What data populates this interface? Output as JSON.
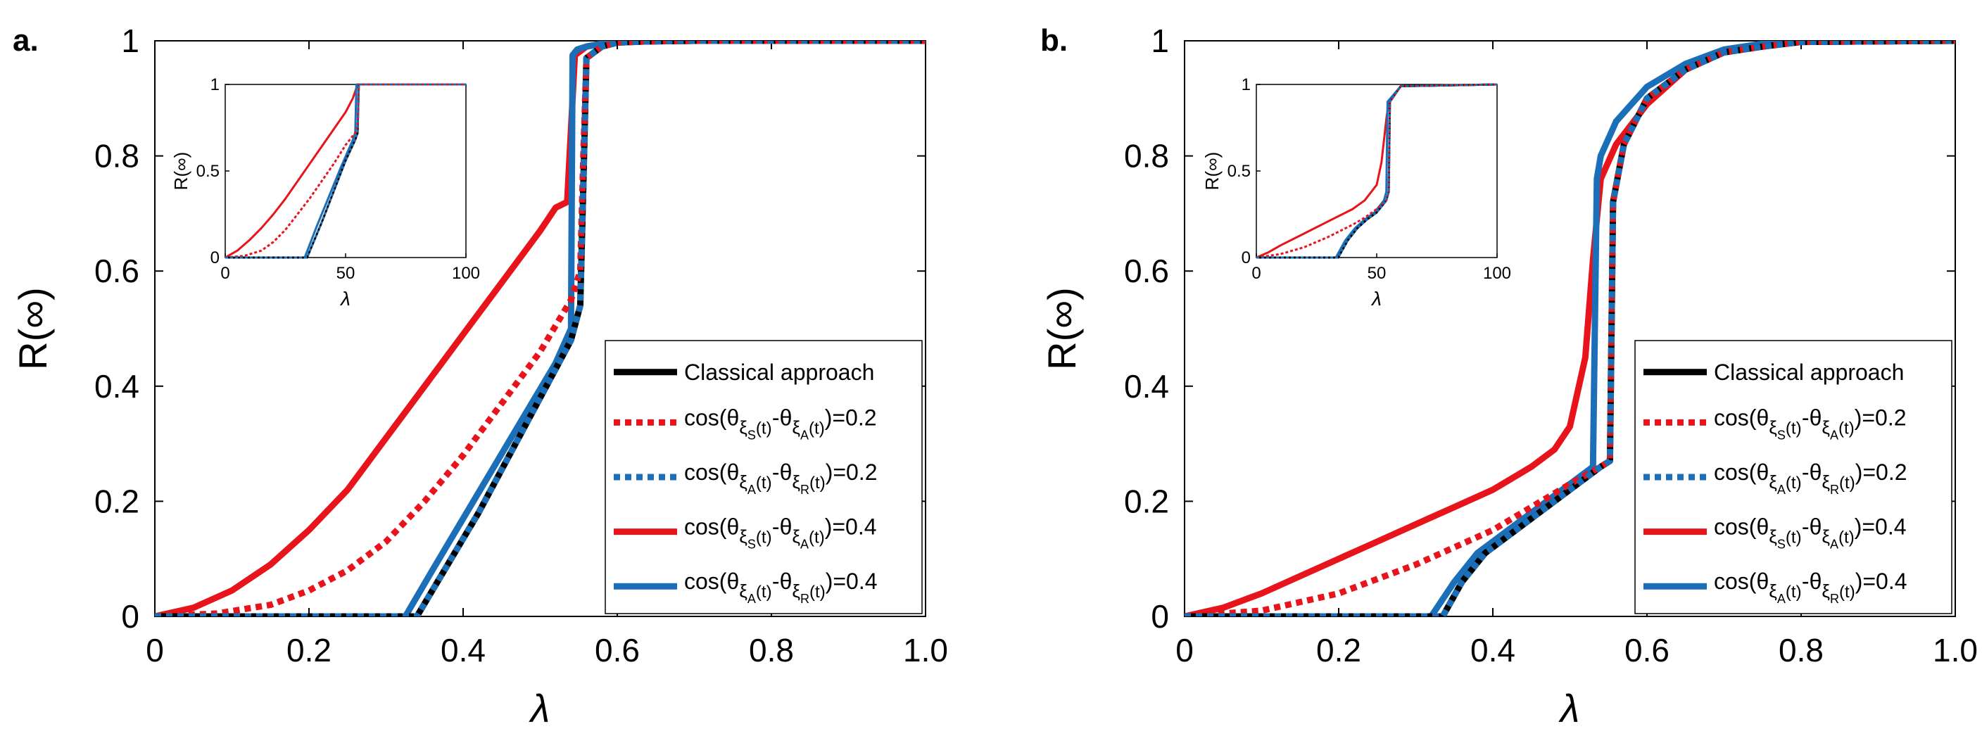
{
  "chart_data": [
    {
      "panel_label": "a.",
      "type": "line",
      "xlabel": "λ",
      "ylabel": "R(∞)",
      "xlim": [
        0,
        1.0
      ],
      "ylim": [
        0,
        1
      ],
      "xticks": [
        "0",
        "0.2",
        "0.4",
        "0.6",
        "0.8",
        "1.0"
      ],
      "yticks": [
        "0",
        "0.2",
        "0.4",
        "0.6",
        "0.8",
        "1"
      ],
      "legend_placement": "lower-right",
      "legend": [
        {
          "prefix": "Classical approach",
          "s1": "",
          "s2": "",
          "value": ""
        },
        {
          "prefix": "cos(θ",
          "s1": "S",
          "s2": "A",
          "value": "=0.2"
        },
        {
          "prefix": "cos(θ",
          "s1": "A",
          "s2": "R",
          "value": "=0.2"
        },
        {
          "prefix": "cos(θ",
          "s1": "S",
          "s2": "A",
          "value": "=0.4"
        },
        {
          "prefix": "cos(θ",
          "s1": "A",
          "s2": "R",
          "value": "=0.4"
        }
      ],
      "series": [
        {
          "name": "Classical approach",
          "color": "#000000",
          "style": "solid",
          "x": [
            0,
            0.34,
            0.38,
            0.42,
            0.46,
            0.5,
            0.54,
            0.552,
            0.556,
            0.56,
            0.58,
            0.6,
            0.64,
            0.7,
            1.0
          ],
          "y": [
            0,
            0,
            0.09,
            0.18,
            0.28,
            0.38,
            0.48,
            0.54,
            0.75,
            0.97,
            0.99,
            0.997,
            0.999,
            1,
            1
          ]
        },
        {
          "name": "cos(θξS(t)-θξA(t))=0.2",
          "color": "#e8141b",
          "style": "dashed",
          "x": [
            0,
            0.08,
            0.15,
            0.2,
            0.25,
            0.3,
            0.35,
            0.4,
            0.45,
            0.5,
            0.54,
            0.552,
            0.556,
            0.56,
            0.58,
            0.6,
            0.64,
            0.7,
            1.0
          ],
          "y": [
            0,
            0.005,
            0.02,
            0.045,
            0.08,
            0.13,
            0.2,
            0.28,
            0.37,
            0.46,
            0.55,
            0.6,
            0.8,
            0.97,
            0.99,
            0.997,
            0.999,
            1,
            1
          ]
        },
        {
          "name": "cos(θξA(t)-θξR(t))=0.2",
          "color": "#1b6fb8",
          "style": "dashed",
          "x": [
            0,
            0.34,
            0.38,
            0.42,
            0.46,
            0.5,
            0.54,
            0.552,
            0.556,
            0.56,
            0.58,
            0.6,
            0.64,
            0.7,
            1.0
          ],
          "y": [
            0,
            0,
            0.09,
            0.18,
            0.28,
            0.38,
            0.48,
            0.54,
            0.75,
            0.97,
            0.99,
            0.997,
            0.999,
            1,
            1
          ]
        },
        {
          "name": "cos(θξS(t)-θξA(t))=0.4",
          "color": "#e8141b",
          "style": "solid",
          "x": [
            0,
            0.05,
            0.1,
            0.15,
            0.2,
            0.25,
            0.3,
            0.35,
            0.4,
            0.45,
            0.5,
            0.52,
            0.535,
            0.545,
            0.56,
            0.58,
            0.6,
            0.64,
            0.7,
            1.0
          ],
          "y": [
            0,
            0.015,
            0.045,
            0.09,
            0.15,
            0.22,
            0.31,
            0.4,
            0.49,
            0.58,
            0.67,
            0.71,
            0.72,
            0.975,
            0.99,
            0.995,
            0.998,
            0.999,
            1,
            1
          ]
        },
        {
          "name": "cos(θξA(t)-θξR(t))=0.4",
          "color": "#1b6fb8",
          "style": "solid",
          "x": [
            0,
            0.325,
            0.36,
            0.4,
            0.44,
            0.48,
            0.52,
            0.54,
            0.542,
            0.548,
            0.56,
            0.58,
            0.6,
            0.64,
            0.7,
            1.0
          ],
          "y": [
            0,
            0,
            0.08,
            0.17,
            0.26,
            0.35,
            0.44,
            0.5,
            0.975,
            0.985,
            0.99,
            0.995,
            0.998,
            0.999,
            1,
            1
          ]
        }
      ],
      "inset": {
        "xlabel": "λ",
        "ylabel": "R(∞)",
        "xlim": [
          0,
          100
        ],
        "ylim": [
          0,
          1
        ],
        "xticks": [
          "0",
          "50",
          "100"
        ],
        "yticks": [
          "0",
          "0.5",
          "1"
        ],
        "series": [
          {
            "color": "#000000",
            "x": [
              0,
              34,
              40,
              45,
              50,
              54,
              55,
              55.5,
              100
            ],
            "y": [
              0,
              0,
              0.2,
              0.38,
              0.56,
              0.68,
              0.72,
              1,
              1
            ]
          },
          {
            "color": "#e8141b",
            "x": [
              0,
              8,
              15,
              20,
              25,
              30,
              35,
              40,
              45,
              50,
              54,
              55,
              55.5,
              100
            ],
            "y": [
              0,
              0.01,
              0.04,
              0.09,
              0.16,
              0.25,
              0.34,
              0.44,
              0.54,
              0.65,
              0.72,
              0.76,
              1,
              1
            ]
          },
          {
            "color": "#1b6fb8",
            "x": [
              0,
              34,
              40,
              45,
              50,
              54,
              55,
              55.5,
              100
            ],
            "y": [
              0,
              0,
              0.2,
              0.38,
              0.56,
              0.68,
              0.72,
              1,
              1
            ]
          },
          {
            "color": "#e8141b",
            "x": [
              0,
              5,
              10,
              15,
              20,
              25,
              30,
              35,
              40,
              45,
              50,
              53,
              55,
              100
            ],
            "y": [
              0,
              0.04,
              0.1,
              0.17,
              0.25,
              0.34,
              0.44,
              0.54,
              0.64,
              0.74,
              0.84,
              0.92,
              1,
              1
            ]
          },
          {
            "color": "#1b6fb8",
            "x": [
              0,
              33,
              38,
              43,
              48,
              53,
              54,
              54.5,
              100
            ],
            "y": [
              0,
              0,
              0.18,
              0.35,
              0.52,
              0.68,
              0.72,
              1,
              1
            ]
          }
        ]
      }
    },
    {
      "panel_label": "b.",
      "type": "line",
      "xlabel": "λ",
      "ylabel": "R(∞)",
      "xlim": [
        0,
        1.0
      ],
      "ylim": [
        0,
        1
      ],
      "xticks": [
        "0",
        "0.2",
        "0.4",
        "0.6",
        "0.8",
        "1.0"
      ],
      "yticks": [
        "0",
        "0.2",
        "0.4",
        "0.6",
        "0.8",
        "1"
      ],
      "legend_placement": "lower-right",
      "legend": [
        {
          "prefix": "Classical approach",
          "s1": "",
          "s2": "",
          "value": ""
        },
        {
          "prefix": "cos(θ",
          "s1": "S",
          "s2": "A",
          "value": "=0.2"
        },
        {
          "prefix": "cos(θ",
          "s1": "A",
          "s2": "R",
          "value": "=0.2"
        },
        {
          "prefix": "cos(θ",
          "s1": "S",
          "s2": "A",
          "value": "=0.4"
        },
        {
          "prefix": "cos(θ",
          "s1": "A",
          "s2": "R",
          "value": "=0.4"
        }
      ],
      "series": [
        {
          "name": "Classical approach",
          "color": "#000000",
          "style": "solid",
          "x": [
            0,
            0.335,
            0.36,
            0.39,
            0.42,
            0.45,
            0.48,
            0.51,
            0.54,
            0.552,
            0.556,
            0.57,
            0.6,
            0.65,
            0.7,
            0.75,
            0.8,
            1.0
          ],
          "y": [
            0,
            0,
            0.06,
            0.11,
            0.14,
            0.17,
            0.2,
            0.23,
            0.26,
            0.27,
            0.72,
            0.82,
            0.9,
            0.95,
            0.98,
            0.99,
            0.998,
            1
          ]
        },
        {
          "name": "cos(θξS(t)-θξA(t))=0.2",
          "color": "#e8141b",
          "style": "dashed",
          "x": [
            0,
            0.1,
            0.2,
            0.3,
            0.35,
            0.4,
            0.45,
            0.5,
            0.54,
            0.552,
            0.556,
            0.57,
            0.6,
            0.65,
            0.7,
            0.75,
            0.8,
            1.0
          ],
          "y": [
            0,
            0.01,
            0.04,
            0.09,
            0.12,
            0.15,
            0.19,
            0.23,
            0.26,
            0.27,
            0.72,
            0.82,
            0.9,
            0.95,
            0.98,
            0.99,
            0.998,
            1
          ]
        },
        {
          "name": "cos(θξA(t)-θξR(t))=0.2",
          "color": "#1b6fb8",
          "style": "dashed",
          "x": [
            0,
            0.335,
            0.36,
            0.39,
            0.42,
            0.45,
            0.48,
            0.51,
            0.54,
            0.552,
            0.556,
            0.57,
            0.6,
            0.65,
            0.7,
            0.75,
            0.8,
            1.0
          ],
          "y": [
            0,
            0,
            0.06,
            0.11,
            0.14,
            0.17,
            0.2,
            0.23,
            0.26,
            0.27,
            0.72,
            0.82,
            0.9,
            0.95,
            0.98,
            0.99,
            0.998,
            1
          ]
        },
        {
          "name": "cos(θξS(t)-θξA(t))=0.4",
          "color": "#e8141b",
          "style": "solid",
          "x": [
            0,
            0.05,
            0.1,
            0.15,
            0.2,
            0.25,
            0.3,
            0.35,
            0.4,
            0.45,
            0.48,
            0.5,
            0.52,
            0.53,
            0.54,
            0.56,
            0.6,
            0.65,
            0.7,
            0.75,
            0.8,
            1.0
          ],
          "y": [
            0,
            0.015,
            0.04,
            0.07,
            0.1,
            0.13,
            0.16,
            0.19,
            0.22,
            0.26,
            0.29,
            0.33,
            0.45,
            0.62,
            0.76,
            0.82,
            0.89,
            0.95,
            0.98,
            0.99,
            0.998,
            1
          ]
        },
        {
          "name": "cos(θξA(t)-θξR(t))=0.4",
          "color": "#1b6fb8",
          "style": "solid",
          "x": [
            0,
            0.32,
            0.35,
            0.38,
            0.41,
            0.44,
            0.47,
            0.5,
            0.53,
            0.535,
            0.54,
            0.56,
            0.6,
            0.65,
            0.7,
            0.75,
            0.8,
            1.0
          ],
          "y": [
            0,
            0,
            0.06,
            0.11,
            0.14,
            0.17,
            0.2,
            0.23,
            0.26,
            0.76,
            0.8,
            0.86,
            0.92,
            0.96,
            0.985,
            0.995,
            0.999,
            1
          ]
        }
      ],
      "inset": {
        "xlabel": "λ",
        "ylabel": "R(∞)",
        "xlim": [
          0,
          100
        ],
        "ylim": [
          0,
          1
        ],
        "xticks": [
          "0",
          "50",
          "100"
        ],
        "yticks": [
          "0",
          "0.5",
          "1"
        ],
        "series": [
          {
            "color": "#000000",
            "x": [
              0,
              34,
              38,
              42,
              46,
              50,
              54,
              55,
              55.5,
              60,
              100
            ],
            "y": [
              0,
              0,
              0.1,
              0.17,
              0.22,
              0.26,
              0.33,
              0.38,
              0.9,
              0.99,
              1
            ]
          },
          {
            "color": "#e8141b",
            "x": [
              0,
              10,
              20,
              30,
              40,
              45,
              50,
              54,
              55,
              55.5,
              60,
              100
            ],
            "y": [
              0,
              0.02,
              0.06,
              0.12,
              0.19,
              0.23,
              0.28,
              0.33,
              0.38,
              0.9,
              0.99,
              1
            ]
          },
          {
            "color": "#1b6fb8",
            "x": [
              0,
              34,
              38,
              42,
              46,
              50,
              54,
              55,
              55.5,
              60,
              100
            ],
            "y": [
              0,
              0,
              0.1,
              0.17,
              0.22,
              0.26,
              0.33,
              0.38,
              0.9,
              0.99,
              1
            ]
          },
          {
            "color": "#e8141b",
            "x": [
              0,
              5,
              10,
              20,
              30,
              40,
              45,
              50,
              52,
              54,
              55,
              60,
              100
            ],
            "y": [
              0,
              0.03,
              0.07,
              0.14,
              0.21,
              0.28,
              0.33,
              0.42,
              0.55,
              0.8,
              0.9,
              0.99,
              1
            ]
          },
          {
            "color": "#1b6fb8",
            "x": [
              0,
              33,
              37,
              41,
              45,
              49,
              53,
              54,
              54.5,
              60,
              100
            ],
            "y": [
              0,
              0,
              0.1,
              0.17,
              0.22,
              0.26,
              0.33,
              0.38,
              0.9,
              0.99,
              1
            ]
          }
        ]
      }
    }
  ]
}
